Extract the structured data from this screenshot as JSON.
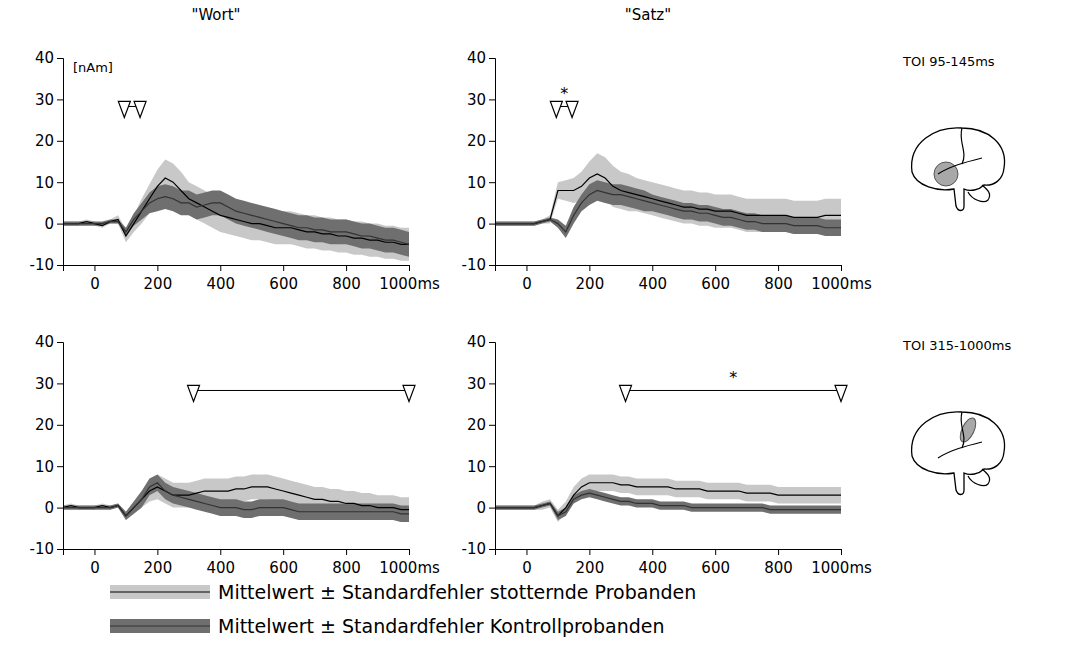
{
  "chart_data": [
    {
      "type": "line",
      "title": "\"Wort\"",
      "ylabel": "[nAm]",
      "legend": "bottom",
      "xlim": [
        -100,
        1000
      ],
      "ylim": [
        -10,
        40
      ],
      "xticks": [
        0,
        200,
        400,
        600,
        800,
        {
          "value": 1000,
          "label": "1000ms"
        }
      ],
      "yticks": [
        -10,
        0,
        10,
        20,
        30,
        40
      ],
      "toi": [
        95,
        145
      ],
      "x": [
        -100,
        -75,
        -50,
        -25,
        0,
        25,
        50,
        75,
        100,
        125,
        150,
        175,
        200,
        225,
        250,
        275,
        300,
        325,
        350,
        375,
        400,
        425,
        450,
        475,
        500,
        525,
        550,
        575,
        600,
        625,
        650,
        675,
        700,
        725,
        750,
        775,
        800,
        825,
        850,
        875,
        900,
        925,
        950,
        975,
        1000
      ],
      "series": [
        {
          "name": "Mittelwert ± Standardfehler stotternde Probanden",
          "color": "#000000",
          "values": [
            0,
            0,
            0,
            0.5,
            0,
            -0.5,
            0.5,
            1,
            -3,
            0,
            3,
            6,
            9,
            11,
            10,
            8,
            6,
            5,
            4,
            3,
            2,
            1.5,
            1,
            0.5,
            0,
            0,
            -0.5,
            -1,
            -1,
            -1,
            -1.5,
            -2,
            -2,
            -2.5,
            -2.5,
            -3,
            -3,
            -3.5,
            -3.5,
            -4,
            -4,
            -4.5,
            -4.5,
            -5,
            -5
          ],
          "error": [
            0.5,
            0.5,
            0.5,
            0.5,
            0.5,
            0.5,
            0.5,
            1,
            1.5,
            2,
            3,
            3.5,
            4,
            4.5,
            4.5,
            4.5,
            4,
            4,
            4,
            4,
            4,
            4,
            4,
            4,
            4,
            4,
            4,
            4,
            4,
            4,
            4,
            4,
            4,
            4,
            4,
            4,
            4,
            4,
            4,
            4,
            4,
            4,
            4,
            4,
            4
          ]
        },
        {
          "name": "Mittelwert ± Standardfehler Kontrollprobanden",
          "color": "#333333",
          "values": [
            0,
            0,
            0,
            0,
            0,
            0,
            0.5,
            0.5,
            -2,
            1,
            3,
            5,
            6,
            6.5,
            6,
            5,
            5,
            4,
            4.5,
            5,
            5,
            4,
            3,
            2.5,
            2,
            1.5,
            1,
            0.5,
            0,
            -0.5,
            -1,
            -1,
            -1.5,
            -1.5,
            -2,
            -2,
            -2,
            -2.5,
            -3,
            -3,
            -3.5,
            -4,
            -4,
            -4.5,
            -5
          ],
          "error": [
            0.5,
            0.5,
            0.5,
            0.5,
            0.5,
            0.5,
            0.5,
            0.5,
            1,
            1.5,
            2,
            2.5,
            3,
            3,
            3,
            3,
            3,
            3,
            3,
            3,
            3,
            3,
            3,
            3,
            3,
            3,
            3,
            3,
            3,
            3,
            3,
            3,
            3,
            3,
            3,
            3,
            3,
            3,
            3,
            3,
            3,
            3,
            3,
            3,
            3
          ]
        }
      ]
    },
    {
      "type": "line",
      "title": "\"Satz\"",
      "side_label": "TOI 95-145ms",
      "significance": "*",
      "xlim": [
        -100,
        1000
      ],
      "ylim": [
        -10,
        40
      ],
      "xticks": [
        0,
        200,
        400,
        600,
        800,
        {
          "value": 1000,
          "label": "1000ms"
        }
      ],
      "yticks": [
        -10,
        0,
        10,
        20,
        30,
        40
      ],
      "toi": [
        95,
        145
      ],
      "x": [
        -100,
        -75,
        -50,
        -25,
        0,
        25,
        50,
        75,
        100,
        125,
        150,
        175,
        200,
        225,
        250,
        275,
        300,
        325,
        350,
        375,
        400,
        425,
        450,
        475,
        500,
        525,
        550,
        575,
        600,
        625,
        650,
        675,
        700,
        725,
        750,
        775,
        800,
        825,
        850,
        875,
        900,
        925,
        950,
        975,
        1000
      ],
      "series": [
        {
          "color": "#000000",
          "values": [
            0,
            0,
            0,
            0,
            0,
            0,
            0.5,
            1,
            8,
            8,
            8,
            9,
            11,
            12,
            11,
            9,
            8,
            7.5,
            7,
            6.5,
            6,
            5.5,
            5,
            4.5,
            4,
            4,
            3.5,
            3.5,
            3,
            3,
            3,
            2.5,
            2,
            2,
            2,
            2,
            2,
            2,
            1.5,
            1.5,
            1.5,
            1.5,
            2,
            2,
            2
          ],
          "error": [
            0.5,
            0.5,
            0.5,
            0.5,
            0.5,
            0.5,
            0.5,
            1,
            2,
            2.5,
            3,
            3.5,
            4,
            5,
            5,
            5,
            4.5,
            4.5,
            4,
            4,
            4,
            4,
            4,
            4,
            4,
            4,
            4,
            4,
            4,
            4,
            4,
            4,
            4,
            4,
            4,
            4,
            4,
            4,
            4,
            4,
            4,
            4,
            4,
            4,
            4
          ]
        },
        {
          "color": "#333333",
          "values": [
            0,
            0,
            0,
            0,
            0,
            0,
            0.5,
            1,
            0,
            -2,
            2,
            5,
            7,
            8,
            7.5,
            7,
            7,
            6.5,
            6,
            5.5,
            5,
            4.5,
            4,
            3.5,
            3,
            3,
            2.5,
            2.5,
            2,
            1.5,
            1.5,
            1,
            0.5,
            0.5,
            0,
            0,
            0,
            0,
            -0.5,
            -0.5,
            -0.5,
            -0.5,
            -1,
            -1,
            -1
          ],
          "error": [
            0.5,
            0.5,
            0.5,
            0.5,
            0.5,
            0.5,
            0.5,
            0.5,
            1,
            1.5,
            2,
            2,
            2.5,
            2.5,
            2.5,
            2.5,
            2.5,
            2.5,
            2.5,
            2.5,
            2,
            2,
            2,
            2,
            2,
            2,
            2,
            2,
            2,
            2,
            2,
            2,
            2,
            2,
            2,
            2,
            2,
            2,
            2,
            2,
            2,
            2,
            2,
            2,
            2
          ]
        }
      ]
    },
    {
      "type": "line",
      "xlim": [
        -100,
        1000
      ],
      "ylim": [
        -10,
        40
      ],
      "xticks": [
        0,
        200,
        400,
        600,
        800,
        {
          "value": 1000,
          "label": "1000ms"
        }
      ],
      "yticks": [
        -10,
        0,
        10,
        20,
        30,
        40
      ],
      "toi": [
        315,
        1000
      ],
      "x": [
        -100,
        -75,
        -50,
        -25,
        0,
        25,
        50,
        75,
        100,
        125,
        150,
        175,
        200,
        225,
        250,
        275,
        300,
        325,
        350,
        375,
        400,
        425,
        450,
        475,
        500,
        525,
        550,
        575,
        600,
        625,
        650,
        675,
        700,
        725,
        750,
        775,
        800,
        825,
        850,
        875,
        900,
        925,
        950,
        975,
        1000
      ],
      "series": [
        {
          "color": "#000000",
          "values": [
            0,
            0.5,
            0,
            0,
            0,
            0.5,
            0,
            0.5,
            -2,
            0,
            2,
            4,
            5,
            4,
            3,
            3,
            3,
            3.5,
            4,
            4,
            4,
            4,
            4.5,
            4.5,
            5,
            5,
            5,
            4.5,
            4,
            3.5,
            3,
            2.5,
            2,
            2,
            1.5,
            1.5,
            1,
            1,
            0.5,
            0.5,
            0,
            0,
            0,
            -0.5,
            -0.5
          ],
          "error": [
            0.5,
            0.5,
            0.5,
            0.5,
            0.5,
            0.5,
            0.5,
            0.5,
            1,
            1.5,
            2,
            2.5,
            3,
            3,
            3,
            3,
            3,
            3,
            3,
            3,
            3,
            3,
            3,
            3,
            3,
            3,
            3,
            3,
            3,
            3,
            3,
            3,
            3,
            3,
            3,
            3,
            3,
            3,
            3,
            3,
            3,
            3,
            3,
            3,
            3
          ]
        },
        {
          "color": "#333333",
          "values": [
            0,
            0,
            0,
            0,
            0,
            0,
            0,
            0.5,
            -2,
            0,
            2,
            5,
            6,
            4,
            3,
            2.5,
            2,
            1.5,
            1,
            0.5,
            0,
            0,
            0,
            -0.5,
            -0.5,
            0,
            0,
            0,
            0,
            -0.5,
            -1,
            -1,
            -1,
            -1,
            -1,
            -1,
            -1,
            -1,
            -1,
            -1,
            -1,
            -1,
            -1,
            -1.5,
            -1.5
          ],
          "error": [
            0.5,
            0.5,
            0.5,
            0.5,
            0.5,
            0.5,
            0.5,
            0.5,
            1,
            1.5,
            2,
            2,
            2,
            2,
            2,
            2,
            2,
            2,
            2,
            2,
            2,
            2,
            2,
            2,
            2,
            2,
            2,
            2,
            2,
            2,
            2,
            2,
            2,
            2,
            2,
            2,
            2,
            2,
            2,
            2,
            2,
            2,
            2,
            2,
            2
          ]
        }
      ]
    },
    {
      "type": "line",
      "side_label": "TOI 315-1000ms",
      "significance": "*",
      "xlim": [
        -100,
        1000
      ],
      "ylim": [
        -10,
        40
      ],
      "xticks": [
        0,
        200,
        400,
        600,
        800,
        {
          "value": 1000,
          "label": "1000ms"
        }
      ],
      "yticks": [
        -10,
        0,
        10,
        20,
        30,
        40
      ],
      "toi": [
        315,
        1000
      ],
      "x": [
        -100,
        -75,
        -50,
        -25,
        0,
        25,
        50,
        75,
        100,
        125,
        150,
        175,
        200,
        225,
        250,
        275,
        300,
        325,
        350,
        375,
        400,
        425,
        450,
        475,
        500,
        525,
        550,
        575,
        600,
        625,
        650,
        675,
        700,
        725,
        750,
        775,
        800,
        825,
        850,
        875,
        900,
        925,
        950,
        975,
        1000
      ],
      "series": [
        {
          "color": "#000000",
          "values": [
            0,
            0,
            0,
            0,
            0,
            0,
            0.5,
            1,
            -2,
            0,
            3,
            5,
            6,
            6,
            6,
            6,
            5.5,
            5.5,
            5,
            5,
            5,
            5,
            5,
            4.5,
            4.5,
            4.5,
            4.5,
            4,
            4,
            4,
            4,
            4,
            3.5,
            3.5,
            3.5,
            3.5,
            3,
            3,
            3,
            3,
            3,
            3,
            3,
            3,
            3
          ],
          "error": [
            0.5,
            0.5,
            0.5,
            0.5,
            0.5,
            0.5,
            1,
            1,
            1.5,
            1.5,
            2,
            2,
            2,
            2,
            2,
            2,
            2,
            2,
            2,
            2,
            2,
            2,
            2,
            2,
            2,
            2,
            2,
            2,
            2,
            2,
            2,
            2,
            2,
            2,
            2,
            2,
            2,
            2,
            2,
            2,
            2,
            2,
            2,
            2,
            2
          ]
        },
        {
          "color": "#333333",
          "values": [
            0,
            0,
            0,
            0,
            0,
            0,
            0.5,
            1,
            -2,
            -1,
            2,
            3,
            3.5,
            3,
            2.5,
            2,
            1.5,
            1.5,
            1,
            1,
            1,
            0.5,
            0.5,
            0.5,
            0.5,
            0,
            0,
            0,
            0,
            0,
            0,
            0,
            0,
            0,
            0,
            -0.5,
            -0.5,
            -0.5,
            -0.5,
            -0.5,
            -0.5,
            -0.5,
            -0.5,
            -0.5,
            -0.5
          ],
          "error": [
            0.5,
            0.5,
            0.5,
            0.5,
            0.5,
            0.5,
            0.5,
            0.5,
            1,
            1,
            1,
            1,
            1,
            1,
            1,
            1,
            1,
            1,
            1,
            1,
            1,
            1,
            1,
            1,
            1,
            1,
            1,
            1,
            1,
            1,
            1,
            1,
            1,
            1,
            1,
            1,
            1,
            1,
            1,
            1,
            1,
            1,
            1,
            1,
            1
          ]
        }
      ]
    }
  ]
}
